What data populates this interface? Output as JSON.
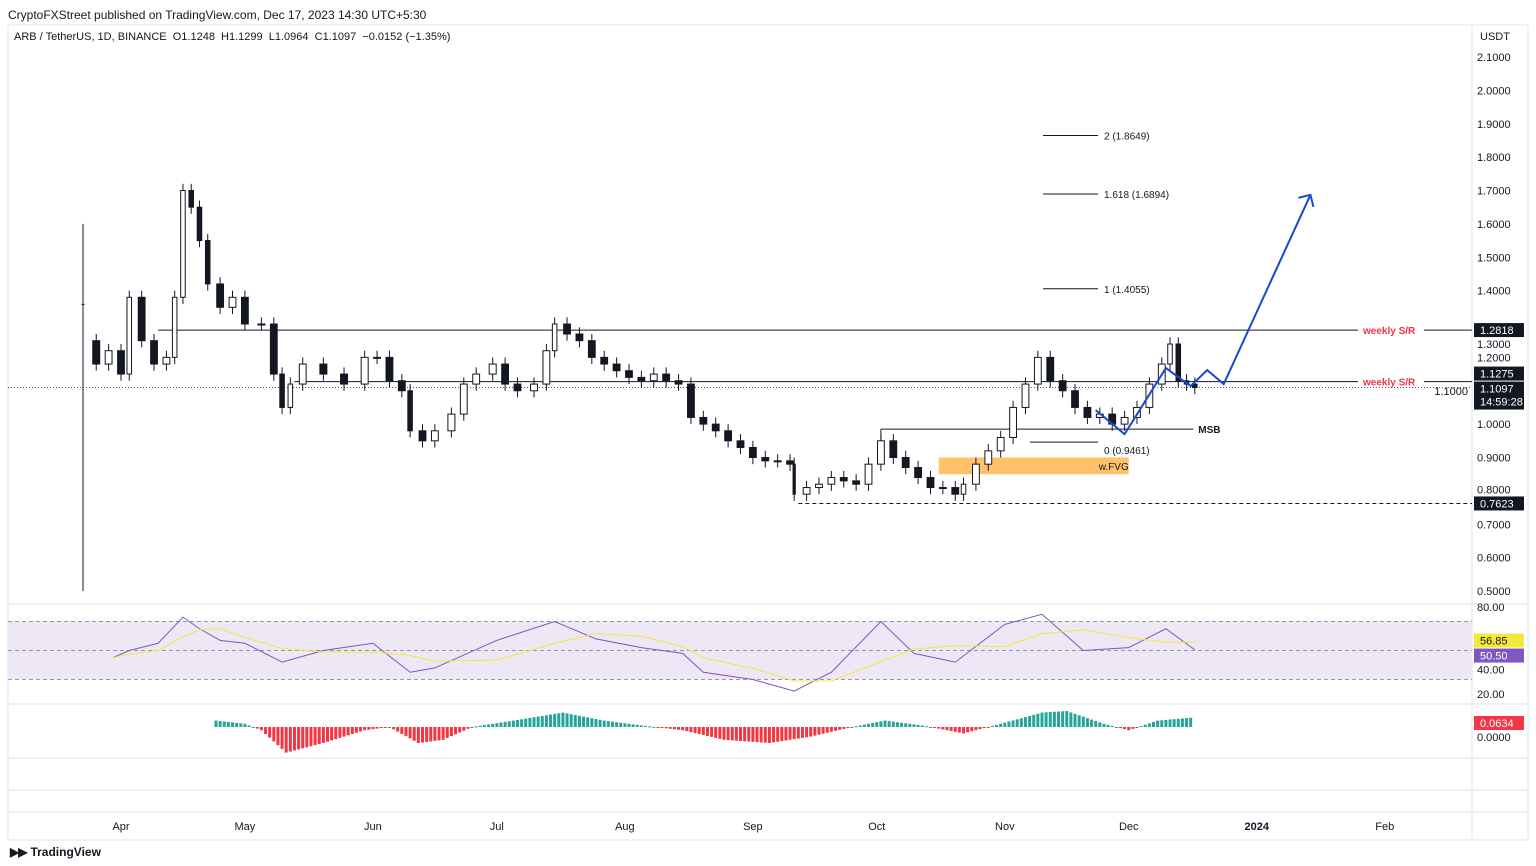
{
  "header": {
    "published": "CryptoFXStreet published on TradingView.com, Dec 17, 2023 14:30 UTC+5:30",
    "legend": "ARB / TetherUS, 1D, BINANCE  O1.1248  H1.1299  L1.0964  C1.1097  −0.0152 (−1.35%)"
  },
  "footer": {
    "brand": "TradingView"
  },
  "colors": {
    "up": "#131722",
    "down": "#131722",
    "sr_label": "#f23645",
    "projection": "#1848cc",
    "fvg": "#ffb74d",
    "rsi": "#7e57c2",
    "rsi_ma": "#f5e83b",
    "macd_up": "#26a69a",
    "macd_down": "#f23645",
    "rsi_band": "#ede7f6"
  },
  "chart_data": [
    {
      "type": "candlestick",
      "title": "ARB / TetherUS, 1D, BINANCE",
      "currency": "USDT",
      "ylim": [
        0.45,
        2.15
      ],
      "y_ticks": [
        "2.1000",
        "2.0000",
        "1.9000",
        "1.8000",
        "1.7000",
        "1.6000",
        "1.5000",
        "1.4000",
        "1.3000",
        "1.2000",
        "1.1000",
        "1.0000",
        "0.9000",
        "0.8000",
        "0.7000",
        "0.6000",
        "0.5000"
      ],
      "x_ticks": [
        {
          "date": "2023-04-01",
          "label": "Apr"
        },
        {
          "date": "2023-05-01",
          "label": "May"
        },
        {
          "date": "2023-06-01",
          "label": "Jun"
        },
        {
          "date": "2023-07-01",
          "label": "Jul"
        },
        {
          "date": "2023-08-01",
          "label": "Aug"
        },
        {
          "date": "2023-09-01",
          "label": "Sep"
        },
        {
          "date": "2023-10-01",
          "label": "Oct"
        },
        {
          "date": "2023-11-01",
          "label": "Nov"
        },
        {
          "date": "2023-12-01",
          "label": "Dec"
        },
        {
          "date": "2024-01-01",
          "label": "2024"
        },
        {
          "date": "2024-02-01",
          "label": "Feb"
        }
      ],
      "first_candle": {
        "date": "2023-03-23",
        "open": 1.25,
        "high": 1.6,
        "low": 0.5,
        "close": 1.25
      },
      "closes": [
        [
          "2023-03-26",
          1.18
        ],
        [
          "2023-03-29",
          1.22
        ],
        [
          "2023-04-01",
          1.15
        ],
        [
          "2023-04-03",
          1.38
        ],
        [
          "2023-04-06",
          1.25
        ],
        [
          "2023-04-09",
          1.18
        ],
        [
          "2023-04-12",
          1.2
        ],
        [
          "2023-04-14",
          1.38
        ],
        [
          "2023-04-16",
          1.7
        ],
        [
          "2023-04-18",
          1.65
        ],
        [
          "2023-04-20",
          1.55
        ],
        [
          "2023-04-22",
          1.42
        ],
        [
          "2023-04-25",
          1.35
        ],
        [
          "2023-04-28",
          1.38
        ],
        [
          "2023-05-01",
          1.3
        ],
        [
          "2023-05-05",
          1.3
        ],
        [
          "2023-05-08",
          1.15
        ],
        [
          "2023-05-10",
          1.05
        ],
        [
          "2023-05-12",
          1.12
        ],
        [
          "2023-05-15",
          1.18
        ],
        [
          "2023-05-20",
          1.15
        ],
        [
          "2023-05-25",
          1.12
        ],
        [
          "2023-05-30",
          1.2
        ],
        [
          "2023-06-02",
          1.2
        ],
        [
          "2023-06-05",
          1.13
        ],
        [
          "2023-06-08",
          1.1
        ],
        [
          "2023-06-10",
          0.98
        ],
        [
          "2023-06-13",
          0.95
        ],
        [
          "2023-06-16",
          0.98
        ],
        [
          "2023-06-20",
          1.03
        ],
        [
          "2023-06-23",
          1.12
        ],
        [
          "2023-06-26",
          1.15
        ],
        [
          "2023-06-30",
          1.18
        ],
        [
          "2023-07-03",
          1.12
        ],
        [
          "2023-07-06",
          1.1
        ],
        [
          "2023-07-10",
          1.12
        ],
        [
          "2023-07-13",
          1.22
        ],
        [
          "2023-07-15",
          1.3
        ],
        [
          "2023-07-18",
          1.27
        ],
        [
          "2023-07-21",
          1.25
        ],
        [
          "2023-07-24",
          1.2
        ],
        [
          "2023-07-27",
          1.18
        ],
        [
          "2023-07-30",
          1.16
        ],
        [
          "2023-08-02",
          1.14
        ],
        [
          "2023-08-05",
          1.13
        ],
        [
          "2023-08-08",
          1.15
        ],
        [
          "2023-08-11",
          1.13
        ],
        [
          "2023-08-14",
          1.12
        ],
        [
          "2023-08-17",
          1.02
        ],
        [
          "2023-08-20",
          1.0
        ],
        [
          "2023-08-23",
          0.98
        ],
        [
          "2023-08-26",
          0.95
        ],
        [
          "2023-08-29",
          0.93
        ],
        [
          "2023-09-01",
          0.9
        ],
        [
          "2023-09-04",
          0.89
        ],
        [
          "2023-09-07",
          0.89
        ],
        [
          "2023-09-10",
          0.88
        ],
        [
          "2023-09-11",
          0.79
        ],
        [
          "2023-09-14",
          0.81
        ],
        [
          "2023-09-17",
          0.82
        ],
        [
          "2023-09-20",
          0.84
        ],
        [
          "2023-09-23",
          0.83
        ],
        [
          "2023-09-26",
          0.82
        ],
        [
          "2023-09-29",
          0.88
        ],
        [
          "2023-10-02",
          0.95
        ],
        [
          "2023-10-05",
          0.9
        ],
        [
          "2023-10-08",
          0.87
        ],
        [
          "2023-10-11",
          0.84
        ],
        [
          "2023-10-14",
          0.81
        ],
        [
          "2023-10-17",
          0.81
        ],
        [
          "2023-10-20",
          0.79
        ],
        [
          "2023-10-22",
          0.82
        ],
        [
          "2023-10-25",
          0.88
        ],
        [
          "2023-10-28",
          0.92
        ],
        [
          "2023-10-31",
          0.96
        ],
        [
          "2023-11-03",
          1.05
        ],
        [
          "2023-11-06",
          1.12
        ],
        [
          "2023-11-09",
          1.2
        ],
        [
          "2023-11-12",
          1.13
        ],
        [
          "2023-11-15",
          1.1
        ],
        [
          "2023-11-18",
          1.05
        ],
        [
          "2023-11-21",
          1.02
        ],
        [
          "2023-11-24",
          1.03
        ],
        [
          "2023-11-27",
          1.0
        ],
        [
          "2023-11-30",
          1.02
        ],
        [
          "2023-12-03",
          1.05
        ],
        [
          "2023-12-06",
          1.12
        ],
        [
          "2023-12-09",
          1.18
        ],
        [
          "2023-12-11",
          1.24
        ],
        [
          "2023-12-13",
          1.13
        ],
        [
          "2023-12-15",
          1.12
        ],
        [
          "2023-12-17",
          1.1097
        ]
      ],
      "last_price": {
        "value": "1.1097",
        "countdown": "14:59:28"
      },
      "levels": [
        {
          "label": "weekly S/R",
          "value": 1.2818,
          "price_label": "1.2818",
          "from": "2023-04-10"
        },
        {
          "label": "weekly S/R",
          "value": 1.1275,
          "price_label": "1.1275",
          "from": "2023-05-13"
        }
      ],
      "low_level": {
        "value": 0.7623,
        "price_label": "0.7623",
        "from": "2023-09-12"
      },
      "msb": {
        "label": "MSB",
        "value": 0.985,
        "from": "2023-10-02",
        "to": "2023-12-13"
      },
      "fib": [
        {
          "label": "2 (1.8649)",
          "value": 1.8649
        },
        {
          "label": "1.618 (1.6894)",
          "value": 1.6894
        },
        {
          "label": "1 (1.4055)",
          "value": 1.4055
        },
        {
          "label": "0 (0.9461)",
          "value": 0.9461
        }
      ],
      "fib_range": {
        "from": "2023-11-01",
        "to": "2023-11-21"
      },
      "fvg": {
        "label": "w.FVG",
        "low": 0.85,
        "high": 0.9,
        "from": "2023-10-16",
        "to": "2023-12-01"
      },
      "projection": [
        [
          "2023-11-23",
          1.042
        ],
        [
          "2023-11-30",
          0.97
        ],
        [
          "2023-12-10",
          1.168
        ],
        [
          "2023-12-16",
          1.114
        ],
        [
          "2023-12-20",
          1.162
        ],
        [
          "2023-12-24",
          1.12
        ],
        [
          "2024-01-14",
          1.687
        ]
      ]
    },
    {
      "type": "line",
      "name": "RSI",
      "ylim": [
        15,
        85
      ],
      "y_ticks": [
        "80.00",
        "40.00",
        "20.00"
      ],
      "band": [
        30,
        70
      ],
      "rsi_label": "50.50",
      "ma_label": "56.85",
      "values": [
        [
          "2023-03-30",
          45
        ],
        [
          "2023-04-03",
          50
        ],
        [
          "2023-04-10",
          55
        ],
        [
          "2023-04-16",
          73
        ],
        [
          "2023-04-20",
          65
        ],
        [
          "2023-04-25",
          57
        ],
        [
          "2023-05-01",
          55
        ],
        [
          "2023-05-10",
          42
        ],
        [
          "2023-05-20",
          50
        ],
        [
          "2023-06-01",
          55
        ],
        [
          "2023-06-10",
          35
        ],
        [
          "2023-06-16",
          38
        ],
        [
          "2023-07-01",
          57
        ],
        [
          "2023-07-15",
          70
        ],
        [
          "2023-07-25",
          58
        ],
        [
          "2023-08-05",
          52
        ],
        [
          "2023-08-15",
          48
        ],
        [
          "2023-08-20",
          35
        ],
        [
          "2023-09-01",
          30
        ],
        [
          "2023-09-11",
          22
        ],
        [
          "2023-09-20",
          35
        ],
        [
          "2023-10-02",
          70
        ],
        [
          "2023-10-10",
          48
        ],
        [
          "2023-10-20",
          42
        ],
        [
          "2023-11-01",
          68
        ],
        [
          "2023-11-10",
          75
        ],
        [
          "2023-11-20",
          50
        ],
        [
          "2023-12-01",
          52
        ],
        [
          "2023-12-10",
          65
        ],
        [
          "2023-12-17",
          50.5
        ]
      ]
    },
    {
      "type": "bar",
      "name": "MACD histogram",
      "y_ticks": [
        "0.0000"
      ],
      "last_label": "0.0634",
      "values": [
        [
          "2023-04-24",
          0.02
        ],
        [
          "2023-05-01",
          0.01
        ],
        [
          "2023-05-05",
          -0.01
        ],
        [
          "2023-05-11",
          -0.08
        ],
        [
          "2023-05-20",
          -0.05
        ],
        [
          "2023-05-30",
          -0.01
        ],
        [
          "2023-06-05",
          0.0
        ],
        [
          "2023-06-12",
          -0.05
        ],
        [
          "2023-06-18",
          -0.04
        ],
        [
          "2023-06-25",
          0.0
        ],
        [
          "2023-07-05",
          0.02
        ],
        [
          "2023-07-17",
          0.045
        ],
        [
          "2023-07-27",
          0.02
        ],
        [
          "2023-08-05",
          0.005
        ],
        [
          "2023-08-15",
          -0.01
        ],
        [
          "2023-08-25",
          -0.04
        ],
        [
          "2023-09-05",
          -0.05
        ],
        [
          "2023-09-15",
          -0.03
        ],
        [
          "2023-09-25",
          0.0
        ],
        [
          "2023-10-03",
          0.02
        ],
        [
          "2023-10-12",
          0.005
        ],
        [
          "2023-10-22",
          -0.02
        ],
        [
          "2023-10-31",
          0.01
        ],
        [
          "2023-11-10",
          0.045
        ],
        [
          "2023-11-16",
          0.05
        ],
        [
          "2023-11-25",
          0.01
        ],
        [
          "2023-12-01",
          -0.01
        ],
        [
          "2023-12-08",
          0.02
        ],
        [
          "2023-12-17",
          0.03
        ]
      ]
    }
  ]
}
